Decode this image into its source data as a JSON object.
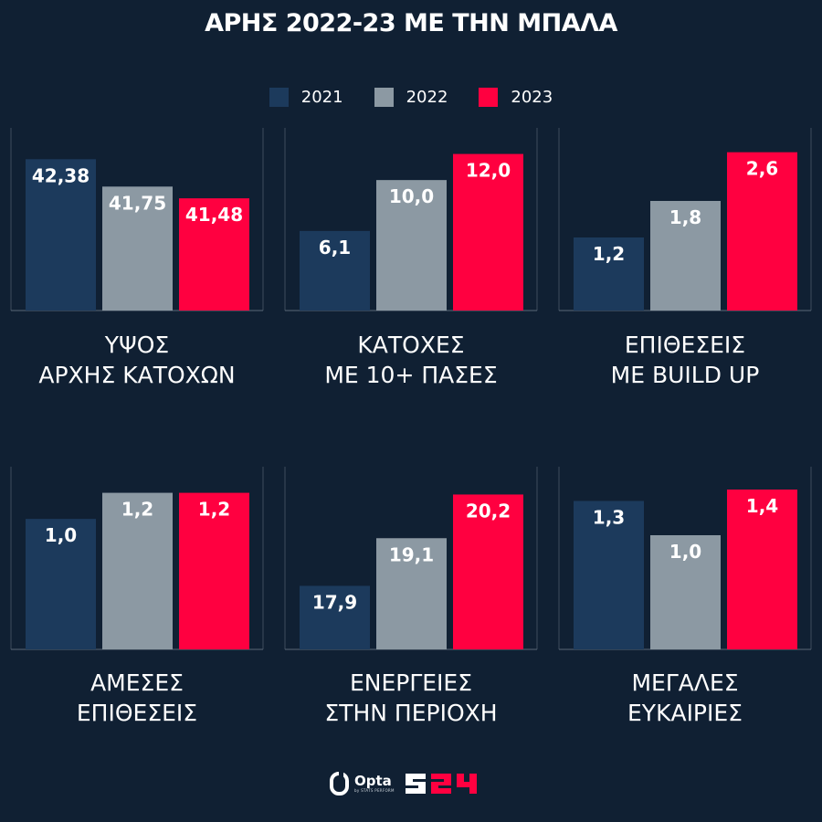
{
  "title": "ΑΡΗΣ 2022-23 ΜΕ ΤΗΝ ΜΠΑΛΑ",
  "legend": [
    {
      "label": "2021",
      "color": "#1c3a5c"
    },
    {
      "label": "2022",
      "color": "#8c99a3"
    },
    {
      "label": "2023",
      "color": "#ff0040"
    }
  ],
  "chart_data": [
    {
      "type": "bar",
      "title_lines": [
        "ΥΨΟΣ",
        "ΑΡΧΗΣ ΚΑΤΟΧΩΝ"
      ],
      "categories": [
        "2021",
        "2022",
        "2023"
      ],
      "values": [
        42.38,
        41.75,
        41.48
      ],
      "labels": [
        "42,38",
        "41,75",
        "41,48"
      ],
      "ylim": [
        38.9,
        43.1
      ]
    },
    {
      "type": "bar",
      "title_lines": [
        "ΚΑΤΟΧΕΣ",
        "ΜΕ 10+ ΠΑΣΕΣ"
      ],
      "categories": [
        "2021",
        "2022",
        "2023"
      ],
      "values": [
        6.1,
        10.0,
        12.0
      ],
      "labels": [
        "6,1",
        "10,0",
        "12,0"
      ],
      "ylim": [
        0,
        14
      ]
    },
    {
      "type": "bar",
      "title_lines": [
        "ΕΠΙΘΕΣΕΙΣ",
        "ΜΕ BUILD UP"
      ],
      "categories": [
        "2021",
        "2022",
        "2023"
      ],
      "values": [
        1.2,
        1.8,
        2.6
      ],
      "labels": [
        "1,2",
        "1,8",
        "2,6"
      ],
      "ylim": [
        0,
        3.0
      ]
    },
    {
      "type": "bar",
      "title_lines": [
        "ΑΜΕΣΕΣ",
        "ΕΠΙΘΕΣΕΙΣ"
      ],
      "categories": [
        "2021",
        "2022",
        "2023"
      ],
      "values": [
        1.0,
        1.2,
        1.2
      ],
      "labels": [
        "1,0",
        "1,2",
        "1,2"
      ],
      "ylim": [
        0,
        1.4
      ]
    },
    {
      "type": "bar",
      "title_lines": [
        "ΕΝΕΡΓΕΙΕΣ",
        "ΣΤΗΝ ΠΕΡΙΟΧΗ"
      ],
      "categories": [
        "2021",
        "2022",
        "2023"
      ],
      "values": [
        17.9,
        19.1,
        20.2
      ],
      "labels": [
        "17,9",
        "19,1",
        "20,2"
      ],
      "ylim": [
        16.3,
        20.9
      ]
    },
    {
      "type": "bar",
      "title_lines": [
        "ΜΕΓΑΛΕΣ",
        "ΕΥΚΑΙΡΙΕΣ"
      ],
      "categories": [
        "2021",
        "2022",
        "2023"
      ],
      "values": [
        1.3,
        1.0,
        1.4
      ],
      "labels": [
        "1,3",
        "1,0",
        "1,4"
      ],
      "ylim": [
        0,
        1.6
      ]
    }
  ],
  "footer": {
    "opta_name": "Opta",
    "opta_sub": "by STATS PERFORM",
    "brand": "S24"
  }
}
